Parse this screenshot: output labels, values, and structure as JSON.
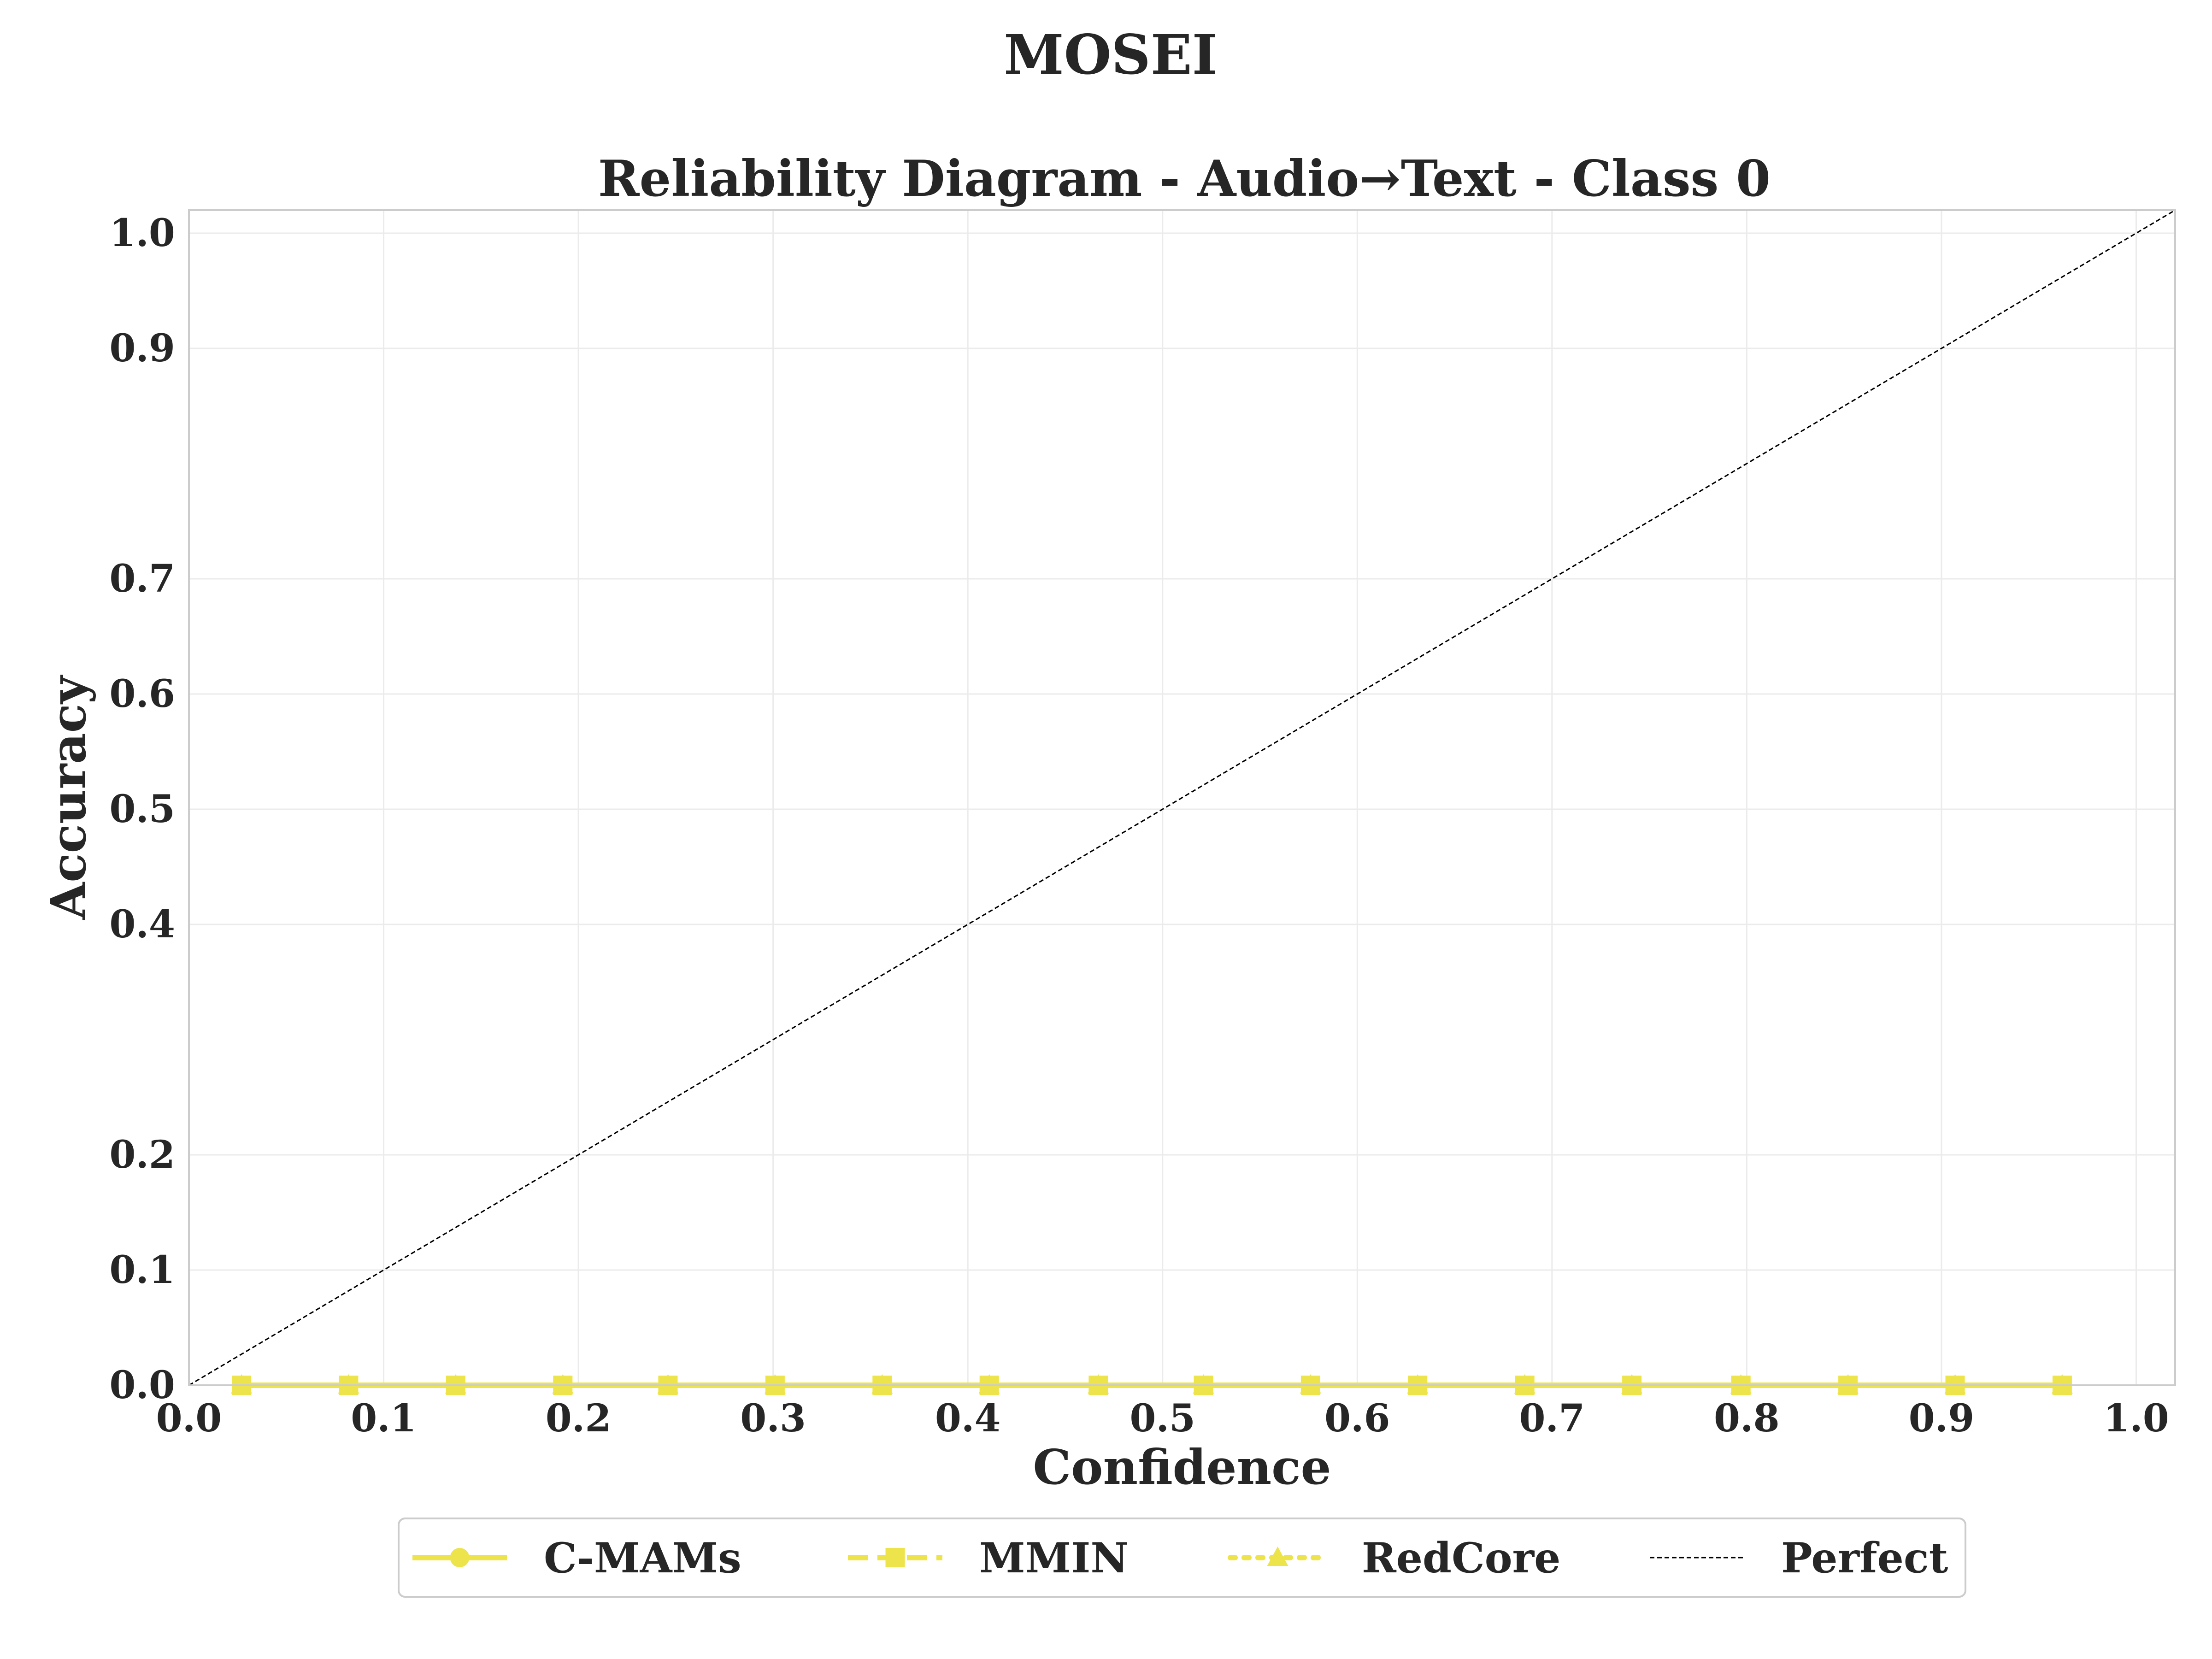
{
  "figure": {
    "suptitle": "MOSEI"
  },
  "chart_data": {
    "type": "line",
    "title": "Reliability Diagram - Audio→Text - Class 0",
    "xlabel": "Confidence",
    "ylabel": "Accuracy",
    "xlim": [
      0.0,
      1.02
    ],
    "ylim": [
      0.0,
      1.02
    ],
    "xticks": [
      "0.0",
      "0.1",
      "0.2",
      "0.3",
      "0.4",
      "0.5",
      "0.6",
      "0.7",
      "0.8",
      "0.9",
      "1.0"
    ],
    "yticks": [
      "0.0",
      "0.1",
      "0.2",
      "0.4",
      "0.5",
      "0.6",
      "0.7",
      "0.9",
      "1.0"
    ],
    "grid": true,
    "legend": {
      "position": "bottom-center",
      "columns": 4
    },
    "series": [
      {
        "name": "C-MAMs",
        "style": "solid",
        "marker": "circle",
        "color": "#ede44c",
        "x": [
          0.027,
          0.082,
          0.137,
          0.192,
          0.246,
          0.301,
          0.356,
          0.411,
          0.467,
          0.521,
          0.576,
          0.631,
          0.686,
          0.741,
          0.797,
          0.852,
          0.907,
          0.962
        ],
        "y": [
          0.0,
          0.0,
          0.0,
          0.0,
          0.0,
          0.0,
          0.0,
          0.0,
          0.0,
          0.0,
          0.0,
          0.0,
          0.0,
          0.0,
          0.0,
          0.0,
          0.0,
          0.0
        ]
      },
      {
        "name": "MMIN",
        "style": "dashed",
        "marker": "square",
        "color": "#ede44c",
        "x": [
          0.027,
          0.082,
          0.137,
          0.192,
          0.246,
          0.301,
          0.356,
          0.411,
          0.467,
          0.521,
          0.576,
          0.631,
          0.686,
          0.741,
          0.797,
          0.852,
          0.907,
          0.962
        ],
        "y": [
          0.0,
          0.0,
          0.0,
          0.0,
          0.0,
          0.0,
          0.0,
          0.0,
          0.0,
          0.0,
          0.0,
          0.0,
          0.0,
          0.0,
          0.0,
          0.0,
          0.0,
          0.0
        ]
      },
      {
        "name": "RedCore",
        "style": "dotted",
        "marker": "triangle",
        "color": "#ede44c",
        "x": [
          0.027,
          0.082,
          0.137,
          0.192,
          0.246,
          0.301,
          0.356,
          0.411,
          0.467,
          0.521,
          0.576,
          0.631,
          0.686,
          0.741,
          0.797,
          0.852,
          0.907,
          0.962
        ],
        "y": [
          0.0,
          0.0,
          0.0,
          0.0,
          0.0,
          0.0,
          0.0,
          0.0,
          0.0,
          0.0,
          0.0,
          0.0,
          0.0,
          0.0,
          0.0,
          0.0,
          0.0,
          0.0
        ]
      },
      {
        "name": "Perfect",
        "style": "thin-dashed",
        "marker": "none",
        "color": "#000000",
        "x": [
          0.0,
          1.02
        ],
        "y": [
          0.0,
          1.02
        ]
      }
    ]
  }
}
